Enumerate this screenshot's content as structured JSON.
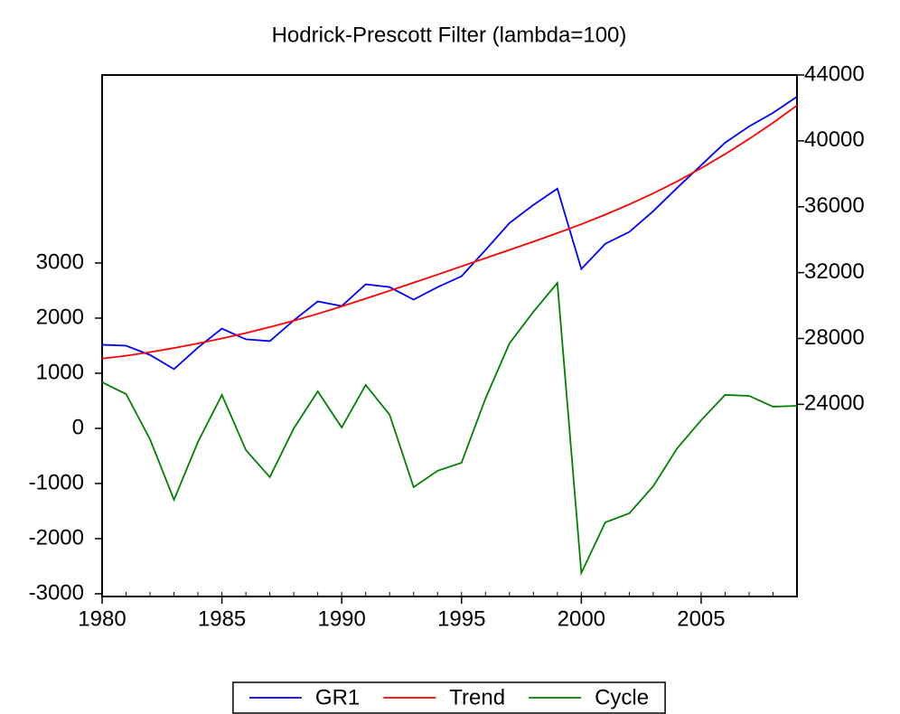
{
  "chart_data": {
    "type": "line",
    "title": "Hodrick-Prescott Filter (lambda=100)",
    "x": [
      1980,
      1981,
      1982,
      1983,
      1984,
      1985,
      1986,
      1987,
      1988,
      1989,
      1990,
      1991,
      1992,
      1993,
      1994,
      1995,
      1996,
      1997,
      1998,
      1999,
      2000,
      2001,
      2002,
      2003,
      2004,
      2005,
      2006,
      2007,
      2008,
      2009
    ],
    "xlim": [
      1980,
      2009
    ],
    "xticks": [
      1980,
      1985,
      1990,
      1995,
      2000,
      2005
    ],
    "ylim": [
      -3050,
      6410
    ],
    "yticks": [
      -3000,
      -2000,
      -1000,
      0,
      1000,
      2000,
      3000
    ],
    "y2lim": [
      12330,
      44000
    ],
    "y2ticks": [
      24000,
      28000,
      32000,
      36000,
      40000,
      44000
    ],
    "series": [
      {
        "name": "GR1",
        "color": "#0000ff",
        "axis": "y2",
        "values": [
          27620,
          27560,
          27000,
          26140,
          27450,
          28600,
          27950,
          27840,
          29100,
          30250,
          29970,
          31290,
          31120,
          30360,
          31120,
          31780,
          33370,
          35010,
          36110,
          37100,
          32220,
          33750,
          34470,
          35730,
          37150,
          38520,
          39890,
          40880,
          41700,
          42680
        ]
      },
      {
        "name": "Trend",
        "color": "#ff0000",
        "axis": "y2",
        "values": [
          26780,
          26950,
          27170,
          27420,
          27700,
          28000,
          28330,
          28690,
          29080,
          29500,
          29950,
          30420,
          30900,
          31390,
          31880,
          32380,
          32880,
          33380,
          33880,
          34400,
          34940,
          35520,
          36140,
          36810,
          37540,
          38340,
          39200,
          40120,
          41100,
          42150
        ]
      },
      {
        "name": "Cycle",
        "color": "#008000",
        "values": [
          836,
          623,
          -197,
          -1295,
          -246,
          607,
          -393,
          -885,
          0,
          672,
          16,
          787,
          246,
          -1066,
          -770,
          -623,
          541,
          1541,
          2115,
          2639,
          -2623,
          -1705,
          -1541,
          -1049,
          -361,
          148,
          607,
          590,
          393,
          410
        ]
      }
    ],
    "legend": "bottom"
  }
}
